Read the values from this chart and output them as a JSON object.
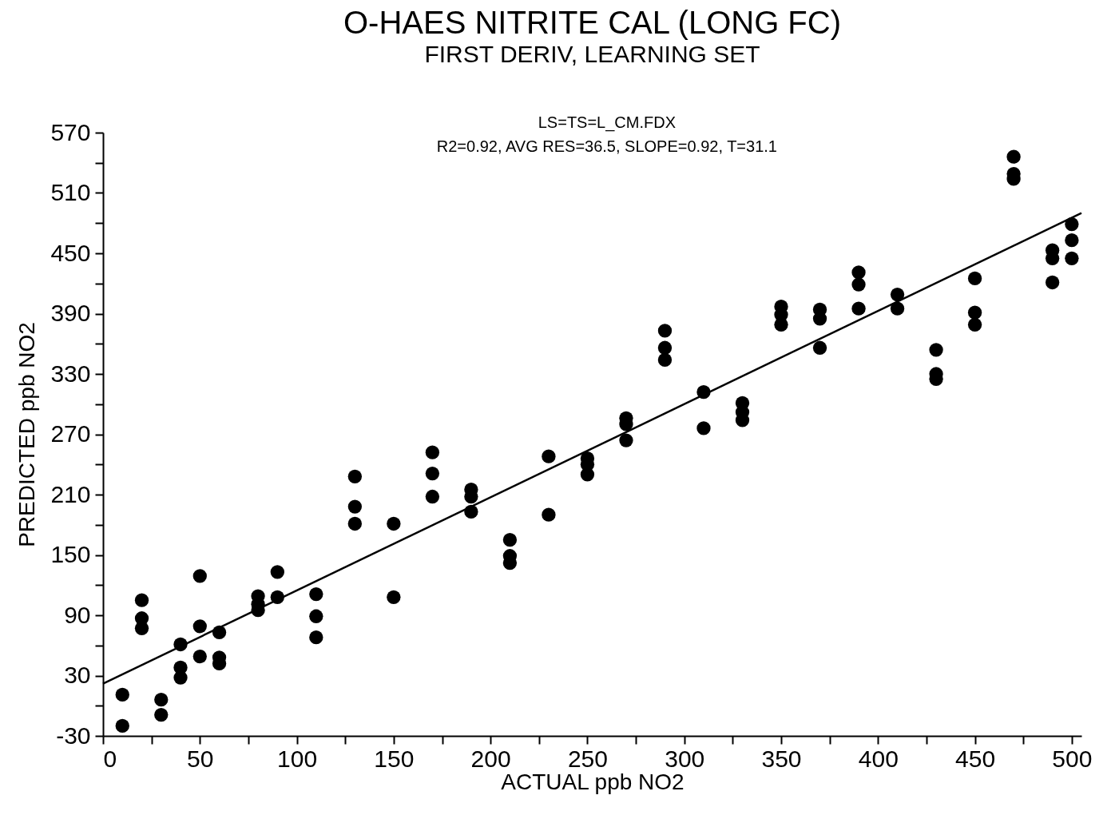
{
  "chart_data": {
    "type": "scatter",
    "title": "O-HAES NITRITE CAL (LONG FC)",
    "subtitle": "FIRST DERIV, LEARNING SET",
    "xlabel": "ACTUAL ppb NO2",
    "ylabel": "PREDICTED ppb NO2",
    "annotations": [
      "LS=TS=L_CM.FDX",
      "R2=0.92, AVG RES=36.5, SLOPE=0.92, T=31.1"
    ],
    "xlim": [
      0,
      505
    ],
    "ylim": [
      -30,
      570
    ],
    "xticks": [
      0,
      {
        "value": 25,
        "label": null
      },
      50,
      {
        "value": 75,
        "label": null
      },
      100,
      {
        "value": 125,
        "label": null
      },
      150,
      {
        "value": 175,
        "label": null
      },
      200,
      {
        "value": 225,
        "label": null
      },
      250,
      {
        "value": 275,
        "label": null
      },
      300,
      {
        "value": 325,
        "label": null
      },
      350,
      {
        "value": 375,
        "label": null
      },
      400,
      {
        "value": 425,
        "label": null
      },
      450,
      {
        "value": 475,
        "label": null
      },
      500
    ],
    "yticks": [
      -30,
      {
        "value": 0,
        "label": null
      },
      30,
      {
        "value": 60,
        "label": null
      },
      90,
      {
        "value": 120,
        "label": null
      },
      150,
      {
        "value": 180,
        "label": null
      },
      210,
      {
        "value": 240,
        "label": null
      },
      270,
      {
        "value": 300,
        "label": null
      },
      330,
      {
        "value": 360,
        "label": null
      },
      390,
      {
        "value": 420,
        "label": null
      },
      450,
      {
        "value": 480,
        "label": null
      },
      510,
      {
        "value": 540,
        "label": null
      },
      570
    ],
    "grid": false,
    "marker": "circle",
    "series": [
      {
        "color": "#000000",
        "x": [
          10,
          10,
          20,
          20,
          20,
          30,
          30,
          40,
          40,
          40,
          50,
          50,
          50,
          60,
          60,
          60,
          80,
          80,
          80,
          90,
          90,
          110,
          110,
          110,
          130,
          130,
          130,
          150,
          150,
          170,
          170,
          170,
          190,
          190,
          190,
          210,
          210,
          210,
          230,
          230,
          250,
          250,
          250,
          270,
          270,
          270,
          290,
          290,
          290,
          310,
          310,
          330,
          330,
          330,
          350,
          350,
          350,
          370,
          370,
          370,
          390,
          390,
          390,
          410,
          410,
          430,
          430,
          430,
          450,
          450,
          450,
          470,
          470,
          470,
          490,
          490,
          490,
          500,
          500,
          500
        ],
        "values": [
          11,
          -20,
          105,
          87,
          77,
          6,
          -9,
          61,
          38,
          28,
          129,
          79,
          49,
          73,
          48,
          42,
          109,
          101,
          95,
          133,
          108,
          111,
          89,
          68,
          228,
          198,
          181,
          181,
          108,
          252,
          231,
          208,
          215,
          208,
          193,
          165,
          149,
          142,
          248,
          190,
          246,
          240,
          230,
          286,
          280,
          264,
          373,
          356,
          344,
          312,
          276,
          301,
          292,
          284,
          397,
          389,
          379,
          394,
          385,
          356,
          431,
          419,
          395,
          409,
          395,
          354,
          330,
          325,
          425,
          391,
          379,
          546,
          529,
          524,
          453,
          445,
          421,
          479,
          463,
          445
        ]
      },
      {
        "type": "line",
        "marker": "none",
        "color": "#000000",
        "x": [
          0,
          505
        ],
        "values": [
          22,
          490
        ]
      }
    ]
  }
}
